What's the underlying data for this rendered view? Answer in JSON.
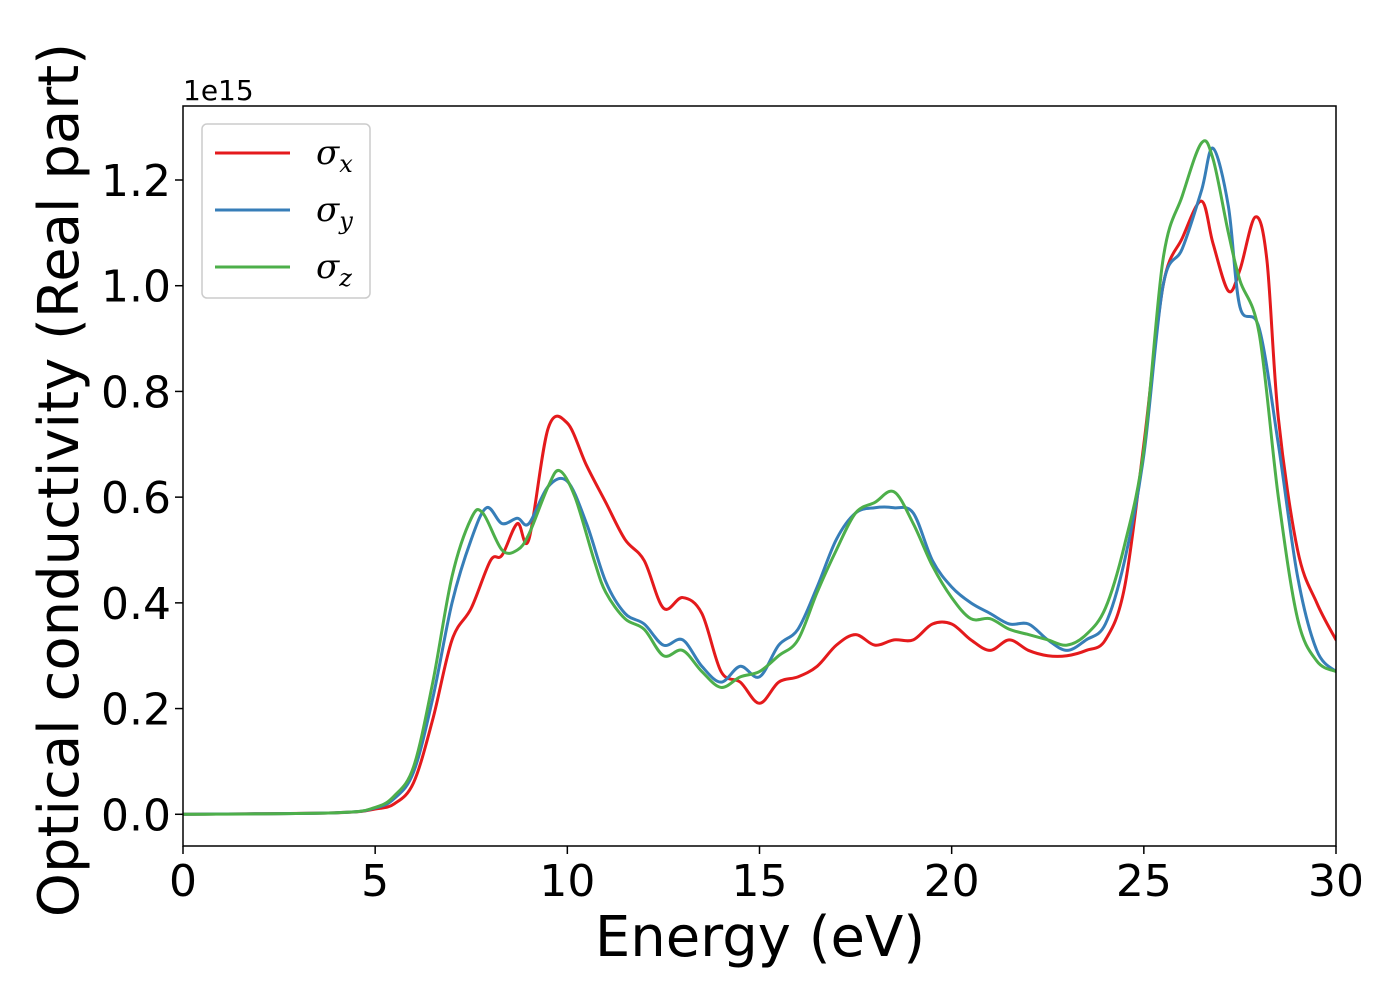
{
  "chart_data": {
    "type": "line",
    "xlabel": "Energy (eV)",
    "ylabel": "Optical conductivity (Real part)",
    "y_offset_text": "1e15",
    "y_scale": 1000000000000000.0,
    "xlim": [
      0,
      30
    ],
    "ylim": [
      -0.06,
      1.34
    ],
    "x_ticks": [
      0,
      5,
      10,
      15,
      20,
      25,
      30
    ],
    "x_tick_labels": [
      "0",
      "5",
      "10",
      "15",
      "20",
      "25",
      "30"
    ],
    "y_ticks": [
      0.0,
      0.2,
      0.4,
      0.6,
      0.8,
      1.0,
      1.2
    ],
    "y_tick_labels": [
      "0.0",
      "0.2",
      "0.4",
      "0.6",
      "0.8",
      "1.0",
      "1.2"
    ],
    "grid": false,
    "legend_position": "upper-left",
    "series": [
      {
        "name": "σx",
        "symbol": "σ",
        "subscript": "x",
        "color": "#e41a1c",
        "x": [
          0,
          4,
          5,
          5.5,
          6,
          6.5,
          7,
          7.5,
          8,
          8.3,
          8.7,
          9,
          9.5,
          10,
          10.5,
          11,
          11.5,
          12,
          12.5,
          13,
          13.5,
          14,
          14.5,
          15,
          15.5,
          16,
          16.5,
          17,
          17.5,
          18,
          18.5,
          19,
          19.5,
          20,
          20.5,
          21,
          21.5,
          22,
          22.5,
          23,
          23.5,
          24,
          24.5,
          25,
          25.5,
          26,
          26.5,
          26.8,
          27.2,
          27.5,
          27.9,
          28.2,
          28.5,
          29,
          29.5,
          30
        ],
        "y": [
          0.0,
          0.003,
          0.01,
          0.02,
          0.06,
          0.18,
          0.33,
          0.39,
          0.48,
          0.49,
          0.55,
          0.52,
          0.73,
          0.74,
          0.66,
          0.59,
          0.52,
          0.48,
          0.39,
          0.41,
          0.38,
          0.27,
          0.25,
          0.21,
          0.25,
          0.26,
          0.28,
          0.32,
          0.34,
          0.32,
          0.33,
          0.33,
          0.36,
          0.36,
          0.33,
          0.31,
          0.33,
          0.31,
          0.3,
          0.3,
          0.31,
          0.33,
          0.43,
          0.7,
          1.0,
          1.09,
          1.16,
          1.08,
          0.99,
          1.03,
          1.13,
          1.05,
          0.75,
          0.5,
          0.4,
          0.33
        ]
      },
      {
        "name": "σy",
        "symbol": "σ",
        "subscript": "y",
        "color": "#377eb8",
        "x": [
          0,
          4,
          5,
          5.5,
          6,
          6.5,
          7,
          7.5,
          7.9,
          8.3,
          8.7,
          9,
          9.5,
          10,
          10.5,
          11,
          11.5,
          12,
          12.5,
          13,
          13.5,
          14,
          14.5,
          15,
          15.5,
          16,
          16.5,
          17,
          17.5,
          18,
          18.5,
          19,
          19.5,
          20,
          20.5,
          21,
          21.5,
          22,
          22.5,
          23,
          23.5,
          24,
          24.5,
          25,
          25.5,
          26,
          26.5,
          26.8,
          27.2,
          27.5,
          28,
          28.5,
          29,
          29.5,
          30
        ],
        "y": [
          0.0,
          0.003,
          0.012,
          0.03,
          0.08,
          0.22,
          0.4,
          0.52,
          0.58,
          0.55,
          0.56,
          0.55,
          0.62,
          0.63,
          0.55,
          0.44,
          0.38,
          0.36,
          0.32,
          0.33,
          0.28,
          0.25,
          0.28,
          0.26,
          0.32,
          0.35,
          0.43,
          0.52,
          0.57,
          0.58,
          0.58,
          0.57,
          0.48,
          0.43,
          0.4,
          0.38,
          0.36,
          0.36,
          0.33,
          0.31,
          0.33,
          0.36,
          0.48,
          0.68,
          1.0,
          1.07,
          1.18,
          1.26,
          1.15,
          0.96,
          0.92,
          0.7,
          0.45,
          0.31,
          0.27
        ]
      },
      {
        "name": "σz",
        "symbol": "σ",
        "subscript": "z",
        "color": "#4daf4a",
        "x": [
          0,
          4,
          5,
          5.5,
          6,
          6.5,
          7,
          7.5,
          7.8,
          8.3,
          8.7,
          9,
          9.5,
          9.8,
          10.2,
          10.7,
          11,
          11.5,
          12,
          12.5,
          13,
          13.5,
          14,
          14.5,
          15,
          15.5,
          16,
          16.5,
          17,
          17.5,
          18,
          18.5,
          19,
          19.5,
          20,
          20.5,
          21,
          21.5,
          22,
          22.5,
          23,
          23.5,
          24,
          24.5,
          25,
          25.5,
          26,
          26.5,
          26.8,
          27.2,
          27.5,
          28,
          28.5,
          29,
          29.5,
          30
        ],
        "y": [
          0.0,
          0.003,
          0.013,
          0.035,
          0.09,
          0.25,
          0.45,
          0.56,
          0.57,
          0.5,
          0.5,
          0.53,
          0.62,
          0.65,
          0.6,
          0.48,
          0.42,
          0.37,
          0.35,
          0.3,
          0.31,
          0.27,
          0.24,
          0.26,
          0.27,
          0.3,
          0.33,
          0.42,
          0.5,
          0.57,
          0.59,
          0.61,
          0.55,
          0.47,
          0.41,
          0.37,
          0.37,
          0.35,
          0.34,
          0.33,
          0.32,
          0.34,
          0.39,
          0.51,
          0.69,
          1.05,
          1.17,
          1.27,
          1.24,
          1.1,
          1.01,
          0.91,
          0.6,
          0.37,
          0.29,
          0.27
        ]
      }
    ]
  }
}
